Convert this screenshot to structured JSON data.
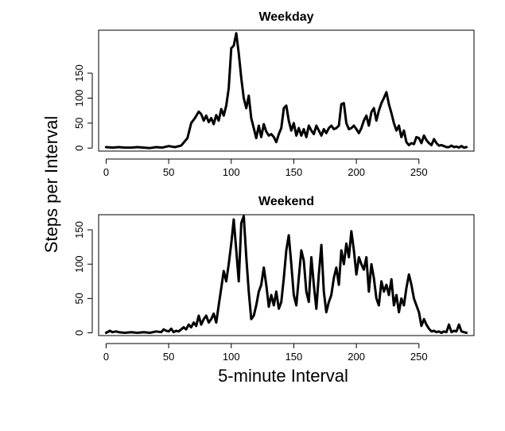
{
  "chart_data": {
    "type": "line",
    "xlabel": "5-minute Interval",
    "ylabel": "Steps per Interval",
    "panels": [
      {
        "title": "Weekday",
        "xlim": [
          -6,
          294
        ],
        "ylim": [
          -6,
          236
        ],
        "xticks": [
          0,
          50,
          100,
          150,
          200,
          250
        ],
        "yticks": [
          0,
          50,
          100,
          150
        ],
        "series": [
          {
            "x": [
              0,
              5,
              10,
              15,
              20,
              25,
              30,
              35,
              40,
              45,
              50,
              55,
              60,
              65,
              68,
              71,
              74,
              76,
              78,
              80,
              82,
              84,
              86,
              88,
              90,
              92,
              94,
              96,
              98,
              100,
              102,
              104,
              106,
              108,
              110,
              112,
              114,
              116,
              118,
              120,
              122,
              124,
              126,
              128,
              130,
              132,
              134,
              136,
              138,
              140,
              142,
              144,
              146,
              148,
              150,
              152,
              154,
              156,
              158,
              160,
              162,
              164,
              166,
              168,
              170,
              172,
              174,
              176,
              178,
              180,
              182,
              184,
              186,
              188,
              190,
              192,
              194,
              196,
              198,
              200,
              202,
              204,
              206,
              208,
              210,
              212,
              214,
              216,
              218,
              220,
              222,
              224,
              226,
              228,
              230,
              232,
              234,
              236,
              238,
              240,
              242,
              244,
              246,
              248,
              250,
              252,
              254,
              256,
              258,
              260,
              262,
              264,
              266,
              268,
              270,
              272,
              274,
              276,
              278,
              280,
              282,
              284,
              286,
              288
            ],
            "values": [
              2,
              1,
              2,
              1,
              1,
              2,
              1,
              0,
              2,
              1,
              4,
              2,
              5,
              20,
              50,
              60,
              73,
              68,
              55,
              65,
              52,
              60,
              48,
              66,
              55,
              78,
              65,
              85,
              120,
              200,
              205,
              230,
              190,
              140,
              100,
              80,
              105,
              60,
              40,
              20,
              45,
              22,
              48,
              33,
              25,
              28,
              22,
              12,
              28,
              40,
              80,
              85,
              55,
              35,
              50,
              25,
              40,
              25,
              38,
              22,
              45,
              35,
              28,
              45,
              35,
              25,
              38,
              30,
              40,
              45,
              38,
              40,
              45,
              88,
              90,
              50,
              38,
              40,
              45,
              38,
              30,
              40,
              55,
              65,
              45,
              72,
              80,
              55,
              75,
              90,
              100,
              112,
              88,
              70,
              50,
              35,
              45,
              22,
              35,
              12,
              6,
              10,
              8,
              22,
              20,
              10,
              25,
              16,
              10,
              6,
              18,
              10,
              5,
              6,
              4,
              2,
              2,
              5,
              2,
              3,
              1,
              4,
              1,
              2
            ]
          }
        ]
      },
      {
        "title": "Weekend",
        "xlim": [
          -6,
          294
        ],
        "ylim": [
          -4,
          172
        ],
        "xticks": [
          0,
          50,
          100,
          150,
          200,
          250
        ],
        "yticks": [
          0,
          50,
          100,
          150
        ],
        "series": [
          {
            "x": [
              0,
              3,
              5,
              8,
              10,
              15,
              20,
              25,
              30,
              35,
              40,
              44,
              46,
              48,
              50,
              52,
              54,
              56,
              58,
              60,
              62,
              64,
              66,
              68,
              70,
              72,
              74,
              76,
              78,
              80,
              82,
              84,
              86,
              88,
              90,
              92,
              94,
              96,
              98,
              100,
              102,
              104,
              106,
              108,
              110,
              112,
              114,
              116,
              118,
              120,
              122,
              124,
              126,
              128,
              130,
              132,
              134,
              136,
              138,
              140,
              142,
              144,
              146,
              148,
              150,
              152,
              154,
              156,
              158,
              160,
              162,
              164,
              166,
              168,
              170,
              172,
              174,
              176,
              178,
              180,
              182,
              184,
              186,
              188,
              190,
              192,
              194,
              196,
              198,
              200,
              202,
              204,
              206,
              208,
              210,
              212,
              214,
              216,
              218,
              220,
              222,
              224,
              226,
              228,
              230,
              232,
              234,
              236,
              238,
              240,
              242,
              244,
              246,
              248,
              250,
              252,
              254,
              256,
              258,
              260,
              262,
              264,
              266,
              268,
              270,
              272,
              274,
              276,
              278,
              280,
              282,
              284,
              286,
              288
            ],
            "values": [
              0,
              3,
              1,
              2,
              1,
              0,
              1,
              0,
              1,
              0,
              2,
              1,
              5,
              3,
              2,
              6,
              1,
              3,
              2,
              5,
              8,
              5,
              12,
              8,
              15,
              10,
              25,
              12,
              20,
              25,
              15,
              20,
              28,
              15,
              40,
              65,
              90,
              75,
              100,
              130,
              165,
              120,
              75,
              160,
              170,
              110,
              60,
              20,
              25,
              40,
              60,
              70,
              95,
              70,
              38,
              55,
              40,
              60,
              35,
              45,
              80,
              120,
              142,
              100,
              55,
              40,
              80,
              120,
              105,
              60,
              45,
              110,
              70,
              35,
              85,
              128,
              60,
              30,
              45,
              55,
              80,
              95,
              70,
              120,
              100,
              130,
              110,
              148,
              120,
              85,
              110,
              100,
              92,
              110,
              60,
              100,
              80,
              50,
              40,
              75,
              60,
              70,
              55,
              78,
              40,
              55,
              30,
              50,
              40,
              65,
              85,
              70,
              50,
              40,
              30,
              10,
              20,
              12,
              6,
              2,
              3,
              1,
              2,
              0,
              2,
              1,
              12,
              1,
              3,
              2,
              12,
              2,
              1,
              0
            ]
          }
        ]
      }
    ]
  }
}
